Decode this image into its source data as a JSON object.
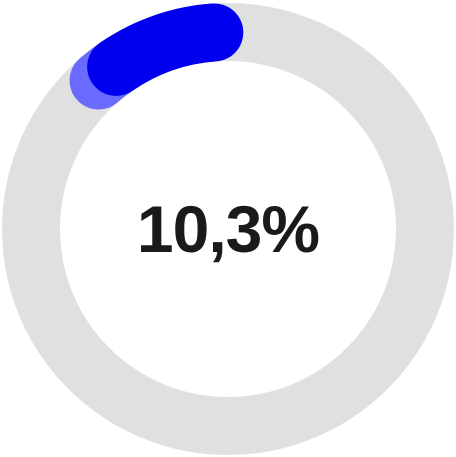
{
  "progress_ring": {
    "percentage_text": "10,3%",
    "value_percent": 10.3,
    "secondary_value_percent": 8.5,
    "colors": {
      "track": "#e0e0e0",
      "primary_arc": "#0000ee",
      "secondary_arc": "#6a6aff",
      "text": "#1a1a1a"
    }
  }
}
